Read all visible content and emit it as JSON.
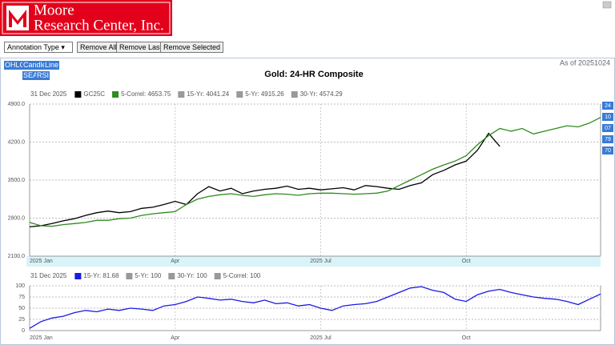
{
  "header": {
    "logo_line1": "Moore",
    "logo_line2": "Research Center, Inc."
  },
  "toolbar": {
    "select": "Annotation Type",
    "buttons": [
      "Remove All",
      "Remove Last",
      "Remove Selected"
    ]
  },
  "panel": {
    "chart_buttons": [
      "OHLC",
      "Candle",
      "Line"
    ],
    "study_buttons": [
      "SEA",
      "RSI"
    ],
    "as_of": "As of 20251024",
    "title": "Gold: 24-HR Composite"
  },
  "chart_data": [
    {
      "type": "line",
      "legend_date": "31 Dec 2025",
      "categories": [
        "2025 Jan",
        null,
        null,
        null,
        null,
        null,
        null,
        null,
        null,
        null,
        null,
        null,
        null,
        "Apr",
        null,
        null,
        null,
        null,
        null,
        null,
        null,
        null,
        null,
        null,
        null,
        null,
        "2025 Jul",
        null,
        null,
        null,
        null,
        null,
        null,
        null,
        null,
        null,
        null,
        null,
        null,
        "Oct",
        null,
        null,
        null,
        null,
        null,
        null,
        null,
        null,
        null,
        null,
        null,
        null
      ],
      "series": [
        {
          "name": "GC25C",
          "color": "#000000",
          "values": [
            2640,
            2660,
            2700,
            2750,
            2790,
            2850,
            2900,
            2930,
            2900,
            2920,
            2980,
            3000,
            3050,
            3110,
            3050,
            3250,
            3380,
            3300,
            3350,
            3250,
            3300,
            3330,
            3350,
            3390,
            3330,
            3350,
            3320,
            3340,
            3360,
            3320,
            3400,
            3380,
            3350,
            3330,
            3400,
            3450,
            3600,
            3680,
            3780,
            3850,
            4050,
            4360,
            4120,
            null,
            null,
            null,
            null,
            null,
            null,
            null,
            null,
            null
          ]
        },
        {
          "name": "5-Correl: 4653.75",
          "color": "#2e8b1e",
          "values": [
            2720,
            2660,
            2650,
            2680,
            2700,
            2720,
            2760,
            2760,
            2790,
            2800,
            2850,
            2880,
            2900,
            2920,
            3050,
            3150,
            3200,
            3230,
            3250,
            3220,
            3200,
            3230,
            3250,
            3240,
            3220,
            3250,
            3260,
            3260,
            3250,
            3240,
            3250,
            3260,
            3300,
            3400,
            3500,
            3600,
            3700,
            3780,
            3850,
            3950,
            4150,
            4320,
            4450,
            4400,
            4450,
            4350,
            4400,
            4450,
            4500,
            4480,
            4550,
            4653.75
          ]
        }
      ],
      "hidden_series": [
        {
          "name": "15-Yr: 4041.24",
          "color": "#999999"
        },
        {
          "name": "5-Yr: 4915.26",
          "color": "#999999"
        },
        {
          "name": "30-Yr: 4574.29",
          "color": "#999999"
        }
      ],
      "ylim": [
        2100,
        4900
      ],
      "yticks": [
        {
          "value": 2100,
          "label": "2100.0"
        },
        {
          "value": 2800,
          "label": "2800.0"
        },
        {
          "value": 3500,
          "label": "3500.0"
        },
        {
          "value": 4200,
          "label": "4200.0"
        },
        {
          "value": 4900,
          "label": "4900.0"
        }
      ],
      "grid": true,
      "right_tags": [
        "24",
        "10",
        "07",
        "79",
        "70"
      ]
    },
    {
      "type": "line",
      "legend_date": "31 Dec 2025",
      "categories": [
        "2025 Jan",
        null,
        null,
        null,
        null,
        null,
        null,
        null,
        null,
        null,
        null,
        null,
        null,
        "Apr",
        null,
        null,
        null,
        null,
        null,
        null,
        null,
        null,
        null,
        null,
        null,
        null,
        "2025 Jul",
        null,
        null,
        null,
        null,
        null,
        null,
        null,
        null,
        null,
        null,
        null,
        null,
        "Oct",
        null,
        null,
        null,
        null,
        null,
        null,
        null,
        null,
        null,
        null,
        null,
        null
      ],
      "series": [
        {
          "name": "15-Yr: 81.68",
          "color": "#1a1ae6",
          "values": [
            5,
            20,
            28,
            32,
            40,
            45,
            42,
            48,
            45,
            50,
            48,
            45,
            55,
            58,
            65,
            75,
            72,
            68,
            70,
            65,
            62,
            68,
            60,
            62,
            55,
            58,
            50,
            45,
            55,
            58,
            60,
            65,
            75,
            85,
            95,
            98,
            90,
            85,
            70,
            65,
            80,
            88,
            92,
            85,
            80,
            75,
            72,
            70,
            65,
            58,
            70,
            81.68
          ]
        }
      ],
      "hidden_series": [
        {
          "name": "5-Yr: 100",
          "color": "#999999"
        },
        {
          "name": "30-Yr: 100",
          "color": "#999999"
        },
        {
          "name": "5-Correl: 100",
          "color": "#999999"
        }
      ],
      "ylim": [
        0,
        100
      ],
      "yticks": [
        0,
        25,
        50,
        75,
        100
      ],
      "grid": true
    }
  ]
}
